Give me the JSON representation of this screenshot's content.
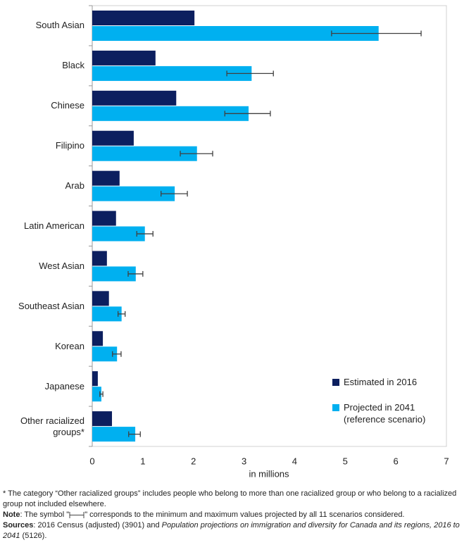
{
  "chart_data": {
    "type": "bar",
    "orientation": "horizontal",
    "categories": [
      "South Asian",
      "Black",
      "Chinese",
      "Filipino",
      "Arab",
      "Latin American",
      "West Asian",
      "Southeast Asian",
      "Korean",
      "Japanese",
      "Other racialized groups*"
    ],
    "series": [
      {
        "name": "Estimated in 2016",
        "color": "#0c1f5f",
        "values": [
          2.02,
          1.25,
          1.66,
          0.82,
          0.54,
          0.47,
          0.29,
          0.33,
          0.21,
          0.11,
          0.39
        ]
      },
      {
        "name": "Projected in 2041 (reference scenario)",
        "color": "#00b0f0",
        "values": [
          5.66,
          3.15,
          3.09,
          2.07,
          1.63,
          1.04,
          0.86,
          0.58,
          0.49,
          0.18,
          0.85
        ],
        "min": [
          4.73,
          2.66,
          2.62,
          1.74,
          1.36,
          0.88,
          0.71,
          0.51,
          0.4,
          0.15,
          0.72
        ],
        "max": [
          6.5,
          3.58,
          3.52,
          2.38,
          1.88,
          1.2,
          1.0,
          0.65,
          0.57,
          0.21,
          0.95
        ]
      }
    ],
    "xlim": [
      0,
      7
    ],
    "xticks": [
      0,
      1,
      2,
      3,
      4,
      5,
      6,
      7
    ],
    "x_label": "in millions",
    "grid": false
  },
  "notes": {
    "footnote": "* The category “Other racialized groups” includes people who belong to more than one racialized group or who belong to a racialized group not included elsewhere.",
    "note_label": "Note",
    "note_pre": ": The symbol \"",
    "note_post": "\" corresponds to the  minimum and maximum values projected by all 11 scenarios considered.",
    "sources_label": "Sources",
    "sources_pre": ":  2016 Census (adjusted) (3901) and ",
    "sources_italic": "Population projections  on immigration  and diversity for Canada and its regions, 2016 to 2041",
    "sources_post": " (5126)."
  }
}
